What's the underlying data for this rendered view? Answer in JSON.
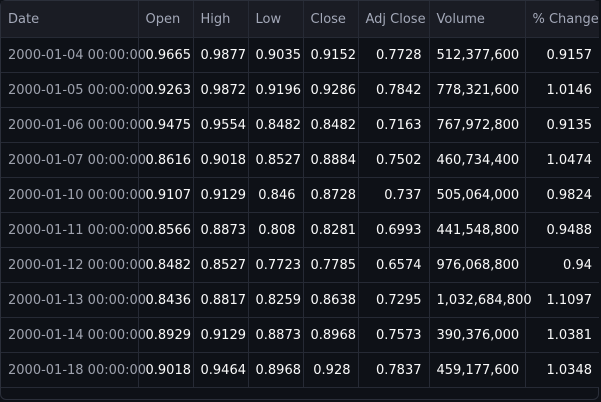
{
  "columns": [
    "Date",
    "Open",
    "High",
    "Low",
    "Close",
    "Adj Close",
    "Volume",
    "% Change"
  ],
  "rows": [
    [
      "2000-01-04 00:00:00",
      "0.9665",
      "0.9877",
      "0.9035",
      "0.9152",
      "0.7728",
      "512,377,600",
      "0.9157"
    ],
    [
      "2000-01-05 00:00:00",
      "0.9263",
      "0.9872",
      "0.9196",
      "0.9286",
      "0.7842",
      "778,321,600",
      "1.0146"
    ],
    [
      "2000-01-06 00:00:00",
      "0.9475",
      "0.9554",
      "0.8482",
      "0.8482",
      "0.7163",
      "767,972,800",
      "0.9135"
    ],
    [
      "2000-01-07 00:00:00",
      "0.8616",
      "0.9018",
      "0.8527",
      "0.8884",
      "0.7502",
      "460,734,400",
      "1.0474"
    ],
    [
      "2000-01-10 00:00:00",
      "0.9107",
      "0.9129",
      "0.846",
      "0.8728",
      "0.737",
      "505,064,000",
      "0.9824"
    ],
    [
      "2000-01-11 00:00:00",
      "0.8566",
      "0.8873",
      "0.808",
      "0.8281",
      "0.6993",
      "441,548,800",
      "0.9488"
    ],
    [
      "2000-01-12 00:00:00",
      "0.8482",
      "0.8527",
      "0.7723",
      "0.7785",
      "0.6574",
      "976,068,800",
      "0.94"
    ],
    [
      "2000-01-13 00:00:00",
      "0.8436",
      "0.8817",
      "0.8259",
      "0.8638",
      "0.7295",
      "1,032,684,800",
      "1.1097"
    ],
    [
      "2000-01-14 00:00:00",
      "0.8929",
      "0.9129",
      "0.8873",
      "0.8968",
      "0.7573",
      "390,376,000",
      "1.0381"
    ],
    [
      "2000-01-18 00:00:00",
      "0.9018",
      "0.9464",
      "0.8968",
      "0.928",
      "0.7837",
      "459,177,600",
      "1.0348"
    ]
  ],
  "colors": {
    "background": "#0e1117",
    "header_background": "#1a1c24",
    "header_text": "#a3a8b8",
    "date_text": "#9ea2ae",
    "cell_text": "#fafafa",
    "grid": "#262a35"
  }
}
